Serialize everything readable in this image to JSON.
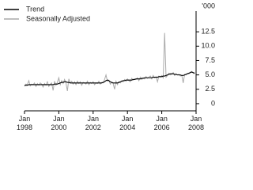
{
  "chart_data": {
    "type": "line",
    "y_unit": "'000",
    "x": [
      "1998-01",
      "1998-02",
      "1998-03",
      "1998-04",
      "1998-05",
      "1998-06",
      "1998-07",
      "1998-08",
      "1998-09",
      "1998-10",
      "1998-11",
      "1998-12",
      "1999-01",
      "1999-02",
      "1999-03",
      "1999-04",
      "1999-05",
      "1999-06",
      "1999-07",
      "1999-08",
      "1999-09",
      "1999-10",
      "1999-11",
      "1999-12",
      "2000-01",
      "2000-02",
      "2000-03",
      "2000-04",
      "2000-05",
      "2000-06",
      "2000-07",
      "2000-08",
      "2000-09",
      "2000-10",
      "2000-11",
      "2000-12",
      "2001-01",
      "2001-02",
      "2001-03",
      "2001-04",
      "2001-05",
      "2001-06",
      "2001-07",
      "2001-08",
      "2001-09",
      "2001-10",
      "2001-11",
      "2001-12",
      "2002-01",
      "2002-02",
      "2002-03",
      "2002-04",
      "2002-05",
      "2002-06",
      "2002-07",
      "2002-08",
      "2002-09",
      "2002-10",
      "2002-11",
      "2002-12",
      "2003-01",
      "2003-02",
      "2003-03",
      "2003-04",
      "2003-05",
      "2003-06",
      "2003-07",
      "2003-08",
      "2003-09",
      "2003-10",
      "2003-11",
      "2003-12",
      "2004-01",
      "2004-02",
      "2004-03",
      "2004-04",
      "2004-05",
      "2004-06",
      "2004-07",
      "2004-08",
      "2004-09",
      "2004-10",
      "2004-11",
      "2004-12",
      "2005-01",
      "2005-02",
      "2005-03",
      "2005-04",
      "2005-05",
      "2005-06",
      "2005-07",
      "2005-08",
      "2005-09",
      "2005-10",
      "2005-11",
      "2005-12",
      "2006-01",
      "2006-02",
      "2006-03",
      "2006-04",
      "2006-05",
      "2006-06",
      "2006-07",
      "2006-08",
      "2006-09",
      "2006-10",
      "2006-11",
      "2006-12",
      "2007-01",
      "2007-02",
      "2007-03",
      "2007-04",
      "2007-05",
      "2007-06",
      "2007-07",
      "2007-08",
      "2007-09",
      "2007-10",
      "2007-11",
      "2007-12"
    ],
    "series": [
      {
        "name": "Trend",
        "color": "#000000",
        "values": [
          3.2,
          3.2,
          3.2,
          3.3,
          3.3,
          3.3,
          3.3,
          3.3,
          3.3,
          3.3,
          3.3,
          3.3,
          3.3,
          3.3,
          3.3,
          3.3,
          3.3,
          3.3,
          3.3,
          3.3,
          3.3,
          3.4,
          3.4,
          3.4,
          3.5,
          3.6,
          3.7,
          3.7,
          3.8,
          3.8,
          3.7,
          3.7,
          3.6,
          3.6,
          3.6,
          3.6,
          3.6,
          3.6,
          3.6,
          3.6,
          3.6,
          3.6,
          3.6,
          3.6,
          3.6,
          3.6,
          3.6,
          3.6,
          3.6,
          3.6,
          3.6,
          3.6,
          3.6,
          3.6,
          3.6,
          3.7,
          3.8,
          4.0,
          4.1,
          4.0,
          3.8,
          3.7,
          3.6,
          3.6,
          3.6,
          3.6,
          3.7,
          3.8,
          3.9,
          4.0,
          4.0,
          4.1,
          4.1,
          4.1,
          4.1,
          4.1,
          4.2,
          4.2,
          4.3,
          4.3,
          4.3,
          4.3,
          4.4,
          4.4,
          4.5,
          4.5,
          4.5,
          4.5,
          4.5,
          4.5,
          4.6,
          4.6,
          4.6,
          4.6,
          4.7,
          4.7,
          4.7,
          4.8,
          4.8,
          4.9,
          5.0,
          5.1,
          5.2,
          5.2,
          5.2,
          5.1,
          5.1,
          5.0,
          5.0,
          5.0,
          4.9,
          4.9,
          5.0,
          5.1,
          5.2,
          5.3,
          5.4,
          5.5,
          5.4,
          5.3
        ]
      },
      {
        "name": "Seasonally Adjusted",
        "color": "#aaaaaa",
        "values": [
          3.0,
          3.4,
          3.3,
          4.0,
          3.1,
          3.4,
          3.3,
          3.6,
          3.0,
          3.5,
          3.2,
          3.6,
          3.4,
          2.9,
          3.5,
          3.2,
          3.8,
          3.0,
          3.4,
          3.6,
          2.3,
          3.9,
          3.2,
          3.7,
          4.5,
          3.3,
          4.0,
          3.5,
          4.2,
          3.6,
          2.2,
          4.3,
          3.6,
          3.9,
          3.4,
          3.8,
          3.3,
          3.9,
          3.5,
          3.8,
          3.2,
          3.7,
          3.6,
          3.4,
          3.9,
          3.3,
          3.7,
          3.5,
          3.8,
          3.3,
          3.6,
          3.5,
          3.9,
          3.4,
          3.7,
          3.6,
          4.2,
          5.0,
          3.9,
          4.1,
          3.4,
          3.7,
          3.5,
          2.5,
          3.9,
          3.3,
          3.8,
          3.6,
          4.0,
          3.8,
          4.2,
          3.9,
          4.3,
          4.0,
          3.8,
          4.4,
          4.1,
          4.3,
          4.2,
          4.5,
          4.0,
          4.6,
          4.2,
          4.5,
          4.3,
          4.7,
          4.4,
          4.6,
          4.8,
          4.3,
          4.9,
          4.5,
          4.7,
          3.8,
          4.8,
          4.6,
          4.9,
          4.5,
          12.3,
          4.6,
          4.9,
          5.3,
          5.0,
          5.1,
          5.4,
          4.9,
          5.2,
          5.0,
          5.1,
          4.8,
          4.9,
          3.6,
          5.1,
          5.0,
          5.3,
          5.2,
          5.5,
          5.6,
          5.3,
          5.2
        ]
      }
    ],
    "xlim": [
      "1998-01",
      "2008-01"
    ],
    "xticks": [
      {
        "value": "1998-01",
        "label": "Jan 1998"
      },
      {
        "value": "2000-01",
        "label": "Jan 2000"
      },
      {
        "value": "2002-01",
        "label": "Jan 2002"
      },
      {
        "value": "2004-01",
        "label": "Jan 2004"
      },
      {
        "value": "2006-01",
        "label": "Jan 2006"
      },
      {
        "value": "2008-01",
        "label": "Jan 2008"
      }
    ],
    "ylim": [
      -1.25,
      15
    ],
    "yticks": [
      0,
      2.5,
      {
        "value": 5,
        "label": "5.0"
      },
      7.5,
      {
        "value": 10,
        "label": "10.0"
      },
      12.5
    ]
  }
}
